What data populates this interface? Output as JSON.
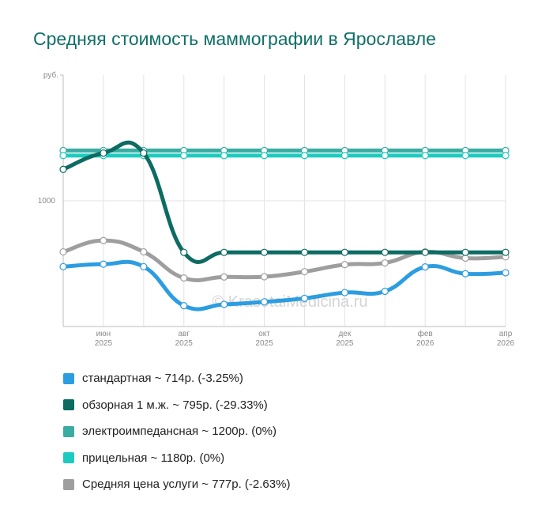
{
  "title": "Средняя стоимость маммографии в Ярославле",
  "watermark": "© KrasotaiMedicina.ru",
  "chart_data": {
    "type": "line",
    "ylabel": "руб.",
    "ylim": [
      500,
      1500
    ],
    "yticks": [
      {
        "value": 1000,
        "label": "1000"
      }
    ],
    "xticks": [
      {
        "i": 1,
        "month": "июн",
        "year": "2025"
      },
      {
        "i": 3,
        "month": "авг",
        "year": "2025"
      },
      {
        "i": 5,
        "month": "окт",
        "year": "2025"
      },
      {
        "i": 7,
        "month": "дек",
        "year": "2025"
      },
      {
        "i": 9,
        "month": "фев",
        "year": "2026"
      },
      {
        "i": 11,
        "month": "апр",
        "year": "2026"
      }
    ],
    "x_count": 12,
    "series": [
      {
        "name": "стандартная",
        "color": "#2c9de0",
        "summary": "стандартная ~ 714р. (-3.25%)",
        "values": [
          738,
          748,
          738,
          583,
          588,
          598,
          612,
          635,
          640,
          737,
          710,
          714
        ]
      },
      {
        "name": "обзорная 1 м.ж.",
        "color": "#0d6b62",
        "summary": "обзорная 1 м.ж. ~ 795р. (-29.33%)",
        "values": [
          1125,
          1190,
          1190,
          795,
          795,
          795,
          795,
          795,
          795,
          795,
          795,
          795
        ]
      },
      {
        "name": "электроимпедансная",
        "color": "#3aaca2",
        "summary": "электроимпедансная ~ 1200р. (0%)",
        "values": [
          1200,
          1200,
          1200,
          1200,
          1200,
          1200,
          1200,
          1200,
          1200,
          1200,
          1200,
          1200
        ]
      },
      {
        "name": "прицельная",
        "color": "#1ccbbf",
        "summary": "прицельная ~ 1180р. (0%)",
        "values": [
          1180,
          1180,
          1180,
          1180,
          1180,
          1180,
          1180,
          1180,
          1180,
          1180,
          1180,
          1180
        ]
      },
      {
        "name": "Средняя цена услуги",
        "color": "#9e9e9e",
        "summary": "Средняя цена услуги ~ 777р. (-2.63%)",
        "values": [
          797,
          842,
          797,
          693,
          697,
          698,
          718,
          746,
          753,
          797,
          772,
          777
        ]
      }
    ]
  }
}
